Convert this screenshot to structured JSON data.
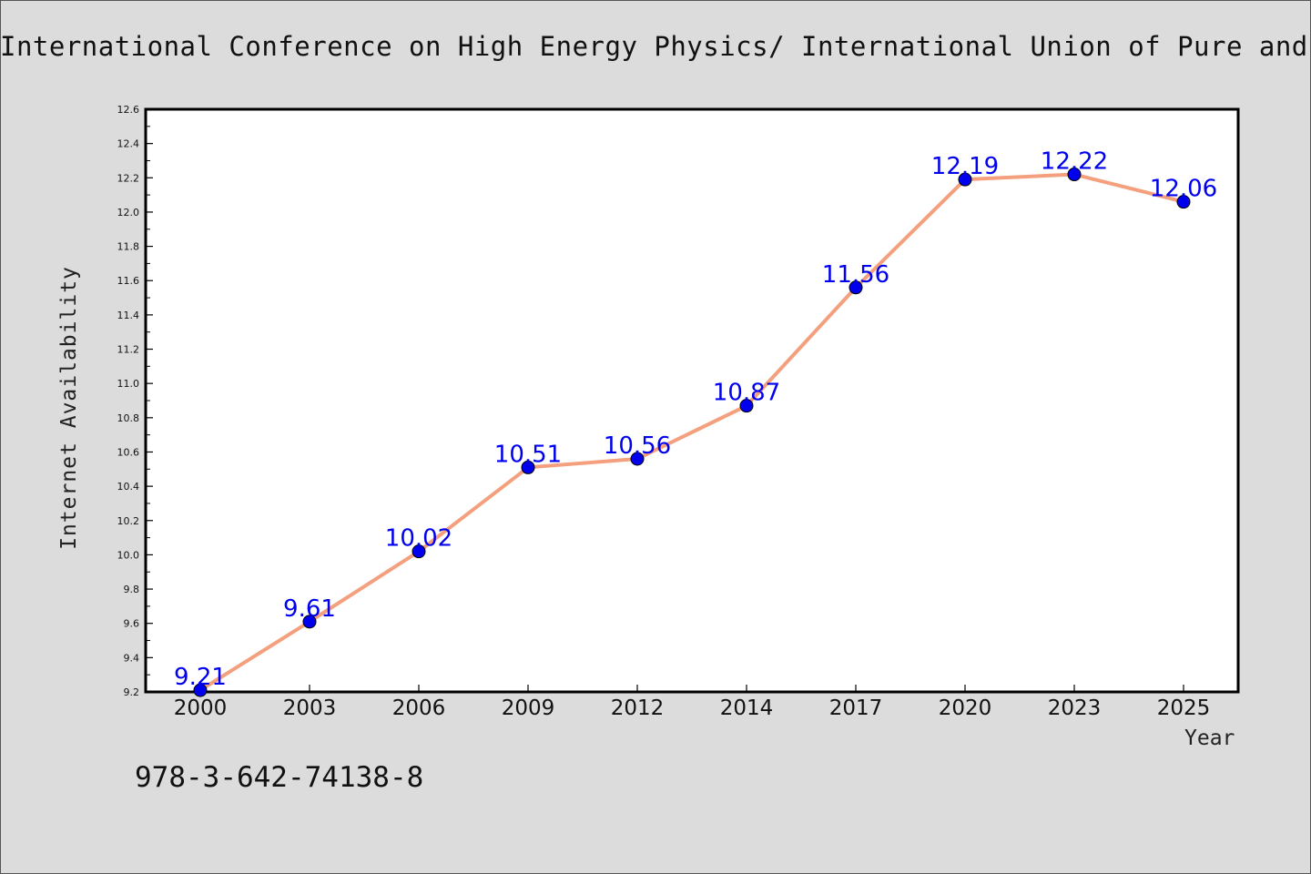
{
  "chart_data": {
    "type": "line",
    "title": "International Conference on High Energy Physics/ International Union of Pure and",
    "xlabel": "Year",
    "ylabel": "Internet Availability",
    "categories": [
      "2000",
      "2003",
      "2006",
      "2009",
      "2012",
      "2014",
      "2017",
      "2020",
      "2023",
      "2025"
    ],
    "series": [
      {
        "values": [
          9.21,
          9.61,
          10.02,
          10.51,
          10.56,
          10.87,
          11.56,
          12.19,
          12.22,
          12.06
        ]
      }
    ],
    "data_labels": [
      "9.21",
      "9.61",
      "10.02",
      "10.51",
      "10.56",
      "10.87",
      "11.56",
      "12.19",
      "12.22",
      "12.06"
    ],
    "ylim": [
      9.2,
      12.6
    ],
    "yticks": [
      "9.2",
      "9.4",
      "9.6",
      "9.8",
      "10.0",
      "10.2",
      "10.4",
      "10.6",
      "10.8",
      "11.0",
      "11.2",
      "11.4",
      "11.6",
      "11.8",
      "12.0",
      "12.2",
      "12.4",
      "12.6"
    ],
    "grid": false,
    "colors": {
      "line": "#f4a07e",
      "marker": "#0000ee",
      "label": "#0000ee",
      "background": "#dcdcdc",
      "plot_background": "#ffffff"
    }
  },
  "footer": {
    "text": "978-3-642-74138-8"
  }
}
